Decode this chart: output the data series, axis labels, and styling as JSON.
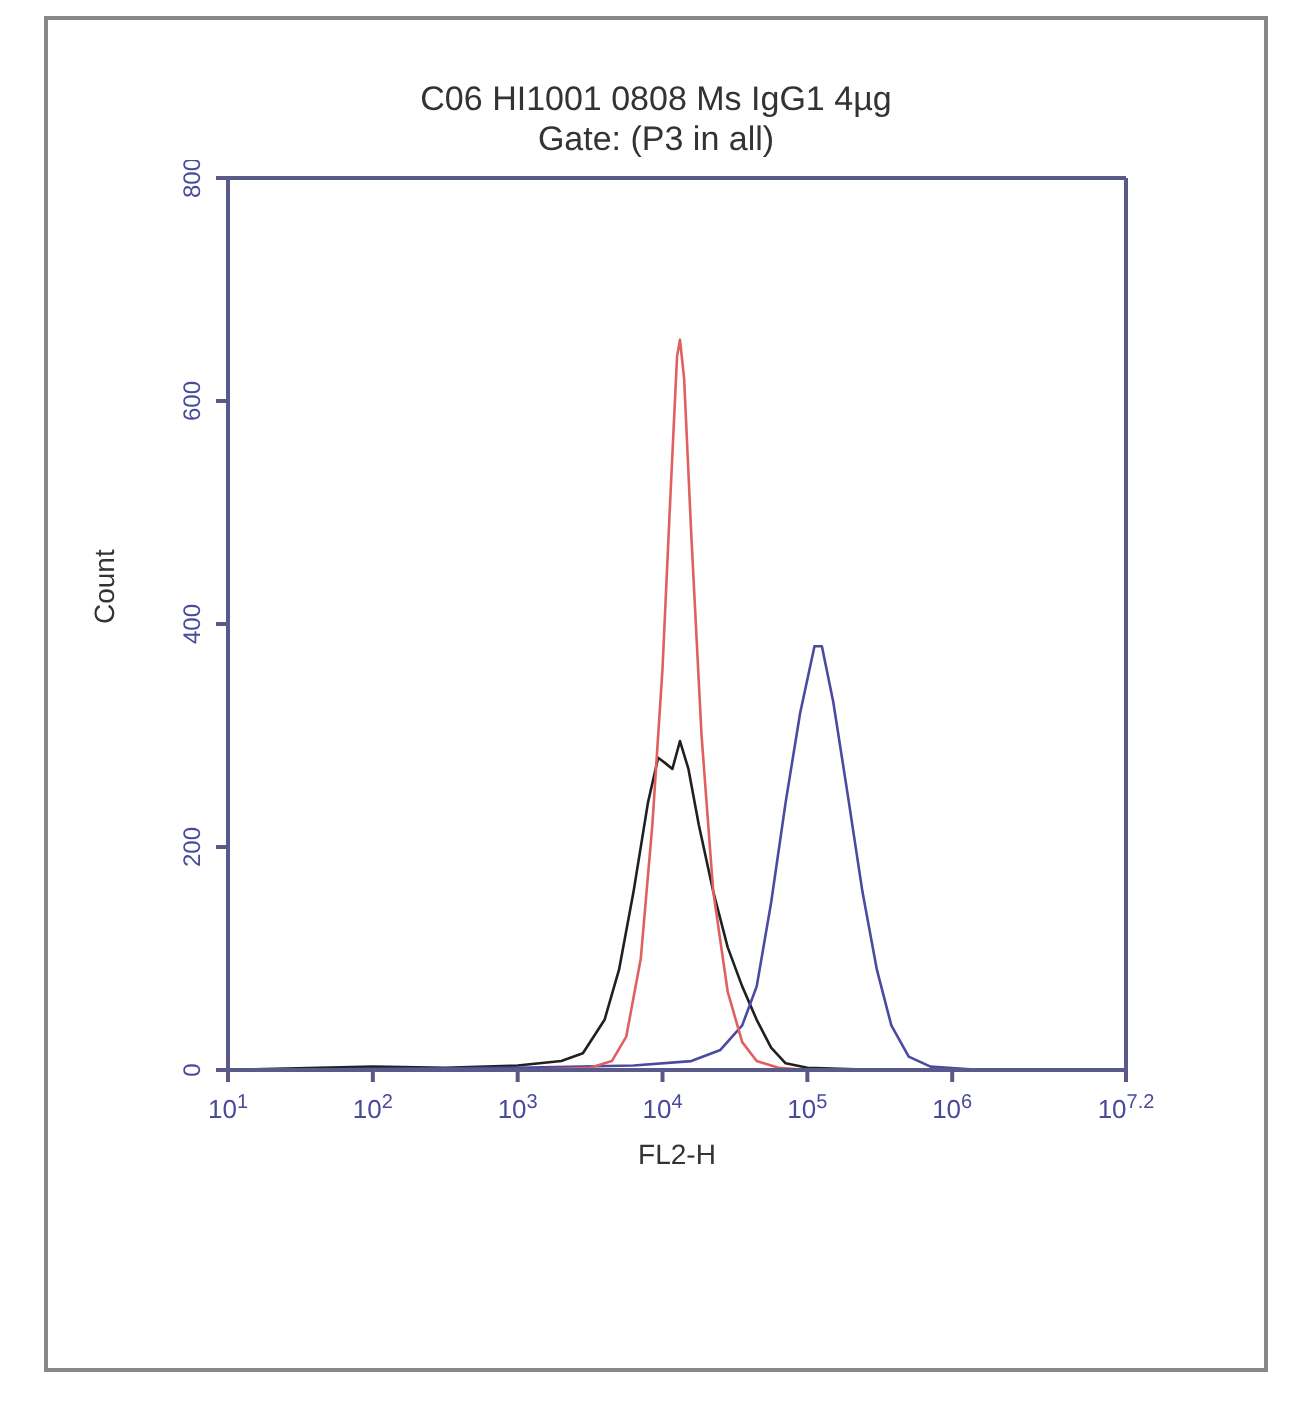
{
  "chart_data": {
    "type": "line",
    "title": "C06 HI1001 0808 Ms IgG1 4µg",
    "subtitle": "Gate: (P3 in all)",
    "xlabel": "FL2-H",
    "ylabel": "Count",
    "log": "x",
    "xlim": [
      10,
      15848932
    ],
    "xticks": [
      {
        "value": 10,
        "label": "10$^{1}$"
      },
      {
        "value": 100,
        "label": "10$^{2}$"
      },
      {
        "value": 1000,
        "label": "10$^{3}$"
      },
      {
        "value": 10000,
        "label": "10$^{4}$"
      },
      {
        "value": 100000,
        "label": "10$^{5}$"
      },
      {
        "value": 1000000,
        "label": "10$^{6}$"
      },
      {
        "value": 15848932,
        "label": "10$^{7.2}$"
      }
    ],
    "ylim": [
      0,
      800
    ],
    "yticks": [
      0,
      200,
      400,
      600,
      800
    ],
    "marker": "none",
    "line_style": "solid",
    "series": [
      {
        "color": "#202020",
        "x": [
          10,
          100,
          316,
          1000,
          2000,
          2820,
          3980,
          5010,
          6310,
          7940,
          9330,
          10500,
          11700,
          13200,
          15100,
          17800,
          22400,
          28200,
          35500,
          44700,
          56200,
          70800,
          100000,
          316000,
          15800000
        ],
        "values": [
          0,
          3,
          2,
          4,
          8,
          15,
          45,
          90,
          160,
          240,
          280,
          275,
          270,
          295,
          270,
          220,
          160,
          110,
          75,
          45,
          20,
          6,
          2,
          0,
          0
        ]
      },
      {
        "color": "#4a4aa0",
        "x": [
          10,
          1000,
          6310,
          15800,
          25100,
          35500,
          44700,
          56200,
          70800,
          89100,
          112000,
          126000,
          151000,
          191000,
          240000,
          302000,
          380000,
          501000,
          708000,
          1580000,
          15800000
        ],
        "values": [
          0,
          2,
          4,
          8,
          18,
          40,
          75,
          150,
          240,
          320,
          380,
          380,
          330,
          245,
          160,
          90,
          40,
          12,
          3,
          0,
          0
        ]
      },
      {
        "color": "#e06060",
        "x": [
          1000,
          3160,
          4470,
          5620,
          7080,
          8510,
          10000,
          11200,
          12600,
          13200,
          14100,
          15800,
          18600,
          22400,
          28200,
          35500,
          44700,
          63100,
          100000
        ],
        "values": [
          0,
          2,
          8,
          30,
          100,
          220,
          360,
          500,
          640,
          655,
          620,
          480,
          300,
          160,
          70,
          25,
          8,
          2,
          0
        ]
      }
    ]
  }
}
